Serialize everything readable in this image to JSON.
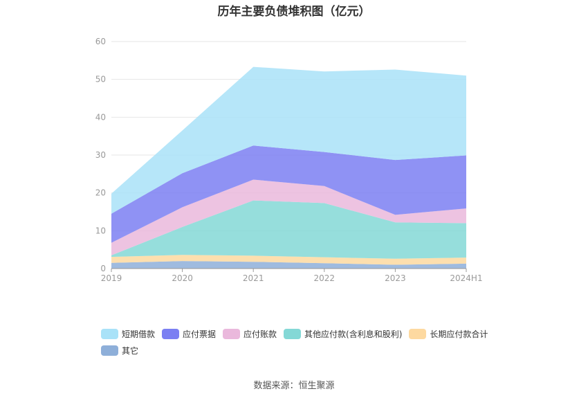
{
  "chart_data": {
    "type": "area",
    "stacked": true,
    "title": "历年主要负债堆积图（亿元）",
    "categories": [
      "2019",
      "2020",
      "2021",
      "2022",
      "2023",
      "2024H1"
    ],
    "ylim": [
      0,
      60
    ],
    "yticks": [
      "0",
      "10",
      "20",
      "30",
      "40",
      "50",
      "60"
    ],
    "grid": true,
    "legend_position": "bottom",
    "series": [
      {
        "name": "其它",
        "color": "#8eafd9",
        "values": [
          1.5,
          2.0,
          1.8,
          1.4,
          1.0,
          1.3
        ]
      },
      {
        "name": "长期应付款合计",
        "color": "#fdd9a0",
        "values": [
          1.6,
          1.6,
          1.6,
          1.6,
          1.6,
          1.6
        ]
      },
      {
        "name": "其他应付款(含利息和股利)",
        "color": "#84d8d6",
        "values": [
          0.4,
          7.4,
          14.6,
          14.3,
          9.6,
          9.1
        ]
      },
      {
        "name": "应付账款",
        "color": "#eab8dc",
        "values": [
          3.3,
          5.2,
          5.5,
          4.5,
          2.0,
          3.9
        ]
      },
      {
        "name": "应付票据",
        "color": "#7b7ff2",
        "values": [
          7.7,
          9.0,
          9.0,
          9.0,
          14.5,
          14.0
        ]
      },
      {
        "name": "短期借款",
        "color": "#a9e2f8",
        "values": [
          5.3,
          11.3,
          20.8,
          21.3,
          23.9,
          21.1
        ]
      }
    ]
  },
  "legend_order": [
    {
      "name": "短期借款",
      "color": "#a9e2f8"
    },
    {
      "name": "应付票据",
      "color": "#7b7ff2"
    },
    {
      "name": "应付账款",
      "color": "#eab8dc"
    },
    {
      "name": "其他应付款(含利息和股利)",
      "color": "#84d8d6"
    },
    {
      "name": "长期应付款合计",
      "color": "#fdd9a0"
    },
    {
      "name": "其它",
      "color": "#8eafd9"
    }
  ],
  "source": "数据来源：恒生聚源"
}
